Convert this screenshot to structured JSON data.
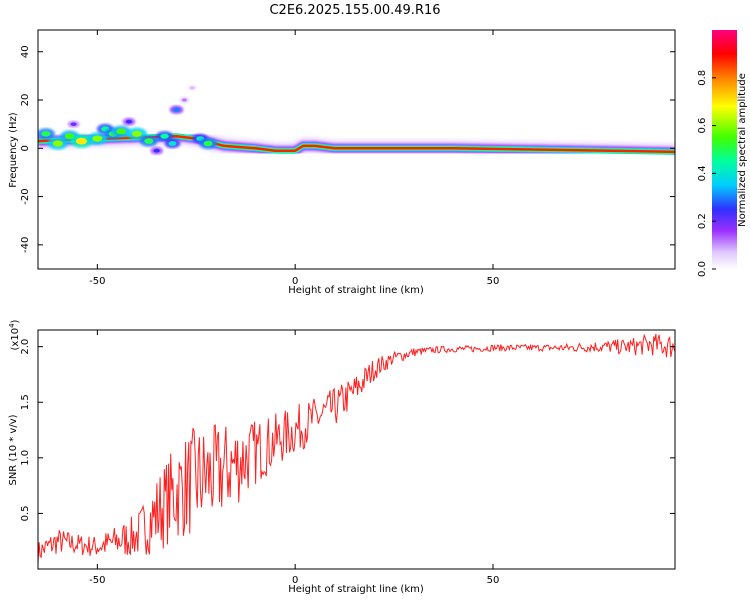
{
  "title": "C2E6.2025.155.00.49.R16",
  "chart_data": [
    {
      "type": "heatmap",
      "title": "",
      "xlabel": "Height of straight line (km)",
      "ylabel": "Frequency (Hz)",
      "xlim": [
        -65,
        96
      ],
      "ylim": [
        -50,
        49
      ],
      "xticks": [
        -50,
        0,
        50
      ],
      "yticks": [
        -40,
        -20,
        0,
        20,
        40
      ],
      "colorbar": {
        "label": "Normalized spectral amplitude",
        "range": [
          0,
          1
        ],
        "ticks": [
          "0.0",
          "0.2",
          "0.4",
          "0.6",
          "0.8"
        ],
        "colors": [
          "#ffffff",
          "#e0c8ff",
          "#9b30ff",
          "#3030ff",
          "#00ccff",
          "#00ff80",
          "#80ff00",
          "#ffff00",
          "#ff8000",
          "#ff0000",
          "#ff00c0"
        ]
      },
      "line": {
        "x": [
          -65,
          -30,
          -25,
          -18,
          -10,
          -5,
          0,
          2,
          5,
          10,
          20,
          40,
          60,
          80,
          96
        ],
        "frequency": [
          3,
          5,
          4,
          1,
          0,
          -1,
          -1,
          1,
          1,
          0,
          0,
          0,
          -0.5,
          -1,
          -1.5
        ]
      },
      "blobs": [
        {
          "x": -63,
          "y": 6,
          "v": 0.5
        },
        {
          "x": -60,
          "y": 2,
          "v": 0.6
        },
        {
          "x": -57,
          "y": 5,
          "v": 0.55
        },
        {
          "x": -54,
          "y": 3,
          "v": 0.7
        },
        {
          "x": -50,
          "y": 4,
          "v": 0.6
        },
        {
          "x": -48,
          "y": 8,
          "v": 0.45
        },
        {
          "x": -46,
          "y": 6,
          "v": 0.5
        },
        {
          "x": -44,
          "y": 7,
          "v": 0.55
        },
        {
          "x": -40,
          "y": 6,
          "v": 0.6
        },
        {
          "x": -37,
          "y": 3,
          "v": 0.5
        },
        {
          "x": -33,
          "y": 5,
          "v": 0.45
        },
        {
          "x": -31,
          "y": 2,
          "v": 0.4
        },
        {
          "x": -30,
          "y": 16,
          "v": 0.3
        },
        {
          "x": -28,
          "y": 20,
          "v": 0.12
        },
        {
          "x": -24,
          "y": 4,
          "v": 0.4
        },
        {
          "x": -22,
          "y": 2,
          "v": 0.5
        },
        {
          "x": -56,
          "y": 10,
          "v": 0.2
        },
        {
          "x": -42,
          "y": 11,
          "v": 0.25
        },
        {
          "x": -35,
          "y": -1,
          "v": 0.25
        },
        {
          "x": -26,
          "y": 25,
          "v": 0.08
        }
      ]
    },
    {
      "type": "line",
      "title": "",
      "xlabel": "Height of straight line (km)",
      "ylabel": "SNR (10 * v/v)",
      "y_multiplier": "(x10^4)",
      "y_multiplier_base": "(x10",
      "y_multiplier_exp": "4",
      "y_multiplier_close": ")",
      "xlim": [
        -65,
        96
      ],
      "ylim": [
        0,
        2.15
      ],
      "xticks": [
        -50,
        0,
        50
      ],
      "yticks": [
        0.5,
        1.0,
        1.5,
        2.0
      ],
      "ytick_labels": [
        "0.5",
        "1.0",
        "1.5",
        "2.0"
      ],
      "color": "#ff2020",
      "series": [
        {
          "x": [
            -65,
            -60,
            -55,
            -50,
            -45,
            -40,
            -35,
            -30,
            -25,
            -20,
            -15,
            -10,
            -5,
            0,
            5,
            10,
            15,
            20,
            25,
            30,
            35,
            40,
            45,
            50,
            55,
            60,
            65,
            70,
            75,
            80,
            85,
            90,
            96
          ],
          "values": [
            0.15,
            0.25,
            0.22,
            0.2,
            0.25,
            0.3,
            0.5,
            0.7,
            0.8,
            0.85,
            0.95,
            1.05,
            1.15,
            1.25,
            1.35,
            1.45,
            1.6,
            1.8,
            1.9,
            1.95,
            1.97,
            1.98,
            1.98,
            1.99,
            1.99,
            1.99,
            1.99,
            1.99,
            2.0,
            2.0,
            2.0,
            2.02,
            2.0
          ],
          "noise": [
            0.1,
            0.12,
            0.1,
            0.1,
            0.15,
            0.2,
            0.35,
            0.45,
            0.5,
            0.45,
            0.4,
            0.3,
            0.25,
            0.22,
            0.2,
            0.18,
            0.15,
            0.1,
            0.06,
            0.04,
            0.03,
            0.03,
            0.03,
            0.03,
            0.03,
            0.03,
            0.03,
            0.04,
            0.05,
            0.06,
            0.08,
            0.1,
            0.12
          ]
        }
      ]
    }
  ]
}
